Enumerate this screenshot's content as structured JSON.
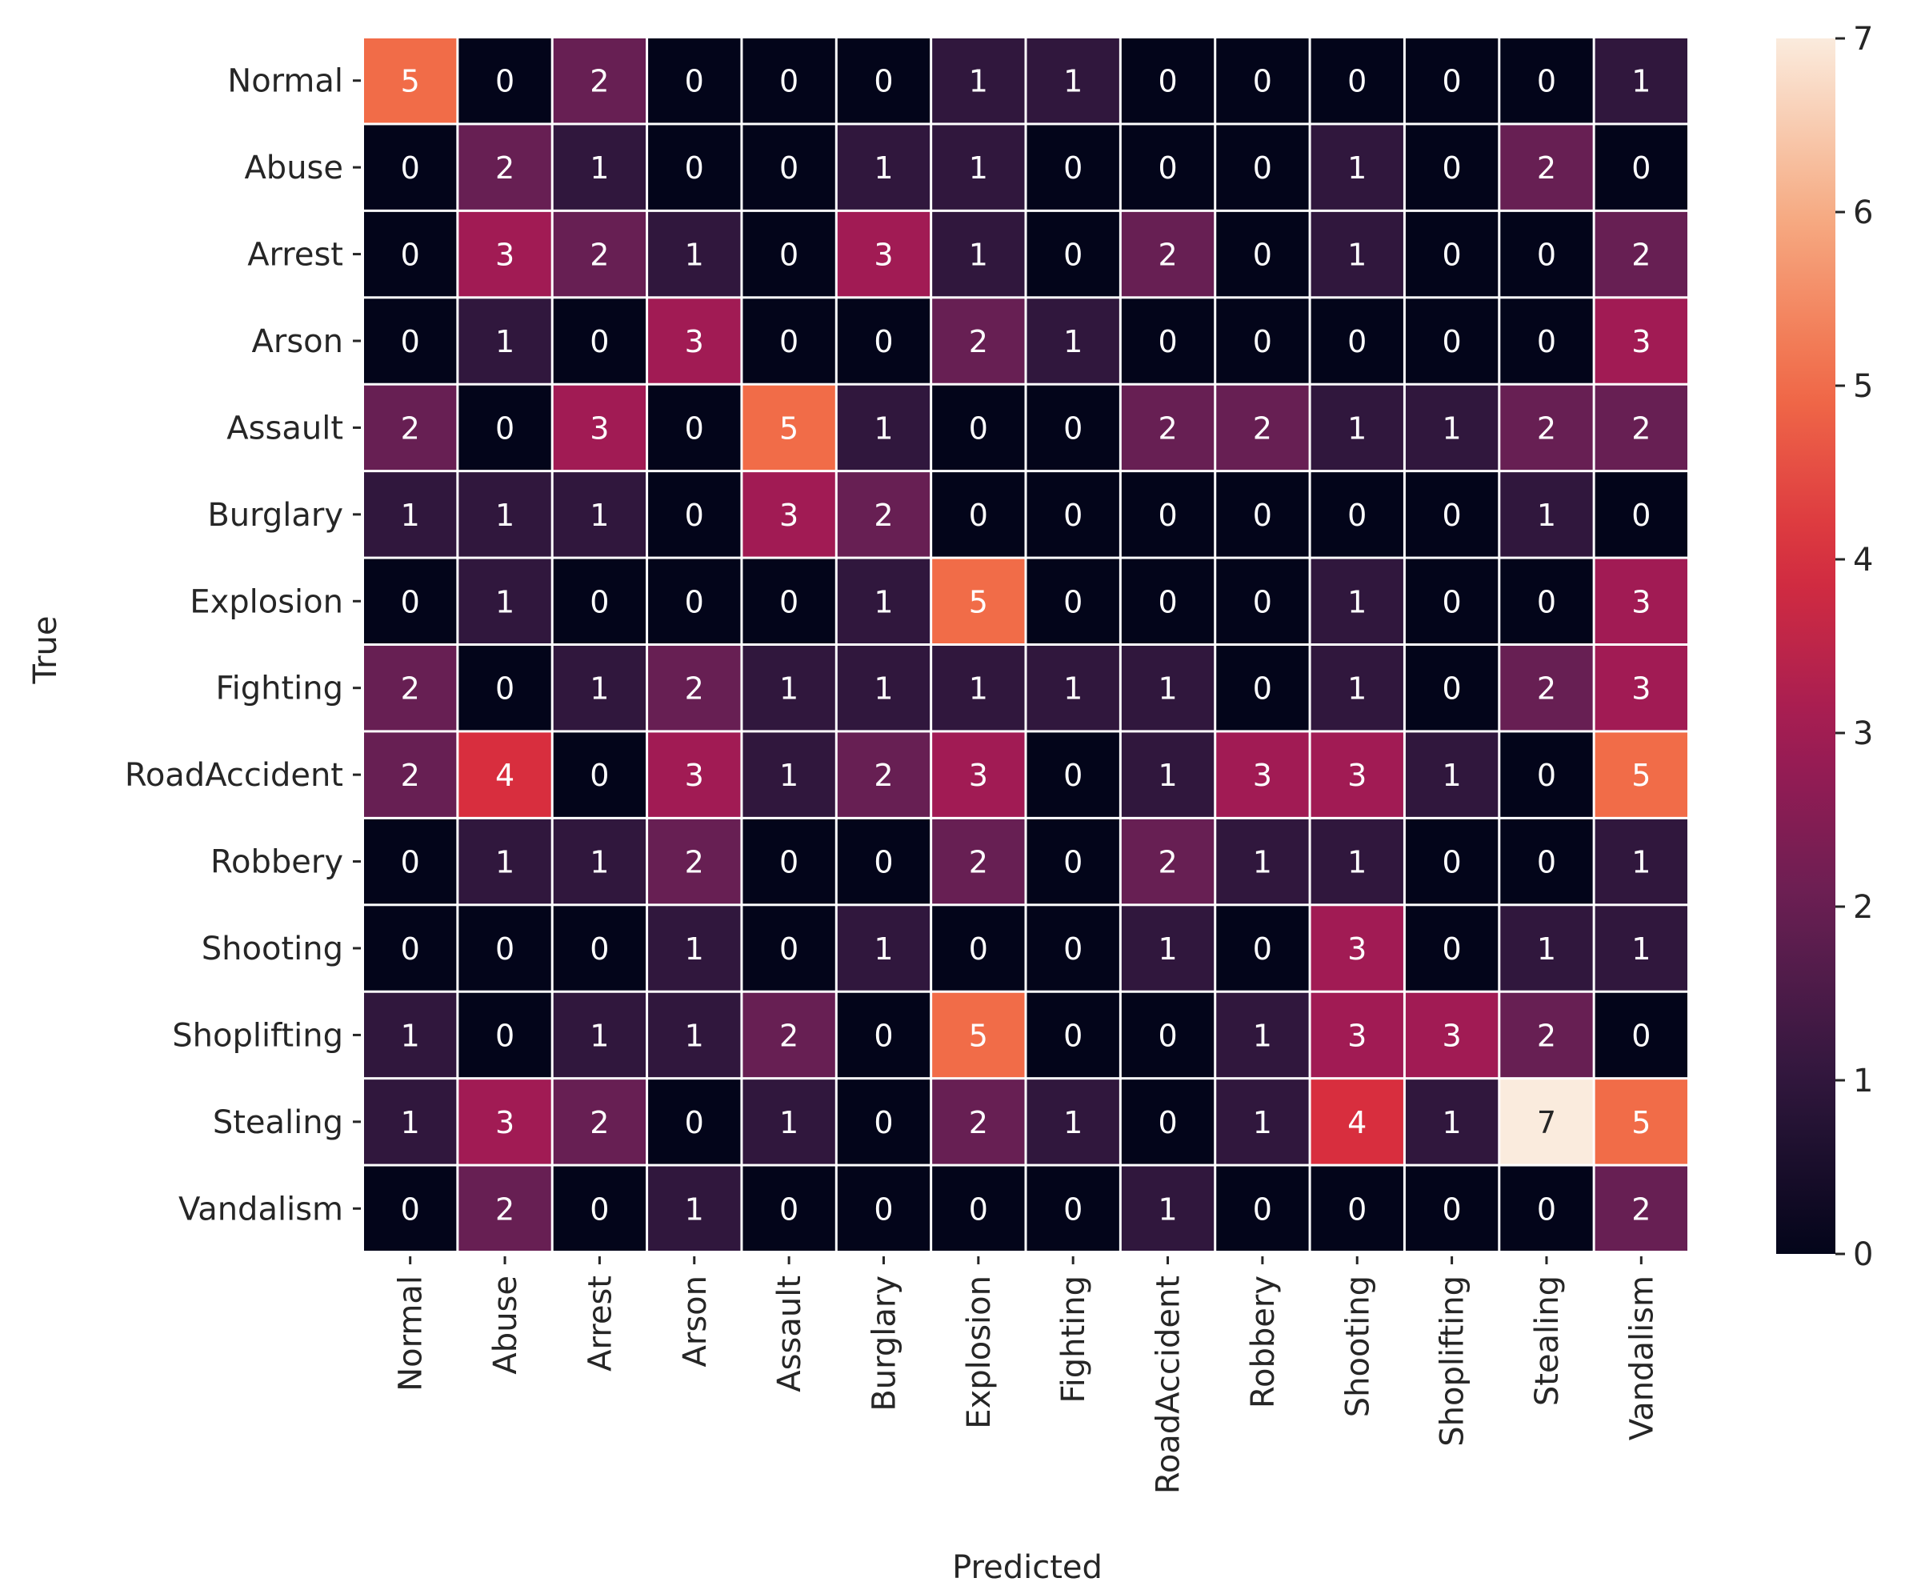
{
  "chart_data": {
    "type": "heatmap",
    "title": "",
    "xlabel": "Predicted",
    "ylabel": "True",
    "row_labels": [
      "Normal",
      "Abuse",
      "Arrest",
      "Arson",
      "Assault",
      "Burglary",
      "Explosion",
      "Fighting",
      "RoadAccident",
      "Robbery",
      "Shooting",
      "Shoplifting",
      "Stealing",
      "Vandalism"
    ],
    "col_labels": [
      "Normal",
      "Abuse",
      "Arrest",
      "Arson",
      "Assault",
      "Burglary",
      "Explosion",
      "Fighting",
      "RoadAccident",
      "Robbery",
      "Shooting",
      "Shoplifting",
      "Stealing",
      "Vandalism"
    ],
    "values": [
      [
        5,
        0,
        2,
        0,
        0,
        0,
        1,
        1,
        0,
        0,
        0,
        0,
        0,
        1
      ],
      [
        0,
        2,
        1,
        0,
        0,
        1,
        1,
        0,
        0,
        0,
        1,
        0,
        2,
        0
      ],
      [
        0,
        3,
        2,
        1,
        0,
        3,
        1,
        0,
        2,
        0,
        1,
        0,
        0,
        2
      ],
      [
        0,
        1,
        0,
        3,
        0,
        0,
        2,
        1,
        0,
        0,
        0,
        0,
        0,
        3
      ],
      [
        2,
        0,
        3,
        0,
        5,
        1,
        0,
        0,
        2,
        2,
        1,
        1,
        2,
        2
      ],
      [
        1,
        1,
        1,
        0,
        3,
        2,
        0,
        0,
        0,
        0,
        0,
        0,
        1,
        0
      ],
      [
        0,
        1,
        0,
        0,
        0,
        1,
        5,
        0,
        0,
        0,
        1,
        0,
        0,
        3
      ],
      [
        2,
        0,
        1,
        2,
        1,
        1,
        1,
        1,
        1,
        0,
        1,
        0,
        2,
        3
      ],
      [
        2,
        4,
        0,
        3,
        1,
        2,
        3,
        0,
        1,
        3,
        3,
        1,
        0,
        5
      ],
      [
        0,
        1,
        1,
        2,
        0,
        0,
        2,
        0,
        2,
        1,
        1,
        0,
        0,
        1
      ],
      [
        0,
        0,
        0,
        1,
        0,
        1,
        0,
        0,
        1,
        0,
        3,
        0,
        1,
        1
      ],
      [
        1,
        0,
        1,
        1,
        2,
        0,
        5,
        0,
        0,
        1,
        3,
        3,
        2,
        0
      ],
      [
        1,
        3,
        2,
        0,
        1,
        0,
        2,
        1,
        0,
        1,
        4,
        1,
        7,
        5
      ],
      [
        0,
        2,
        0,
        1,
        0,
        0,
        0,
        0,
        1,
        0,
        0,
        0,
        0,
        2
      ]
    ],
    "colorbar": {
      "range": [
        0,
        7
      ],
      "ticks": [
        "0",
        "1",
        "2",
        "3",
        "4",
        "5",
        "6",
        "7"
      ],
      "colormap": "rocket"
    }
  }
}
